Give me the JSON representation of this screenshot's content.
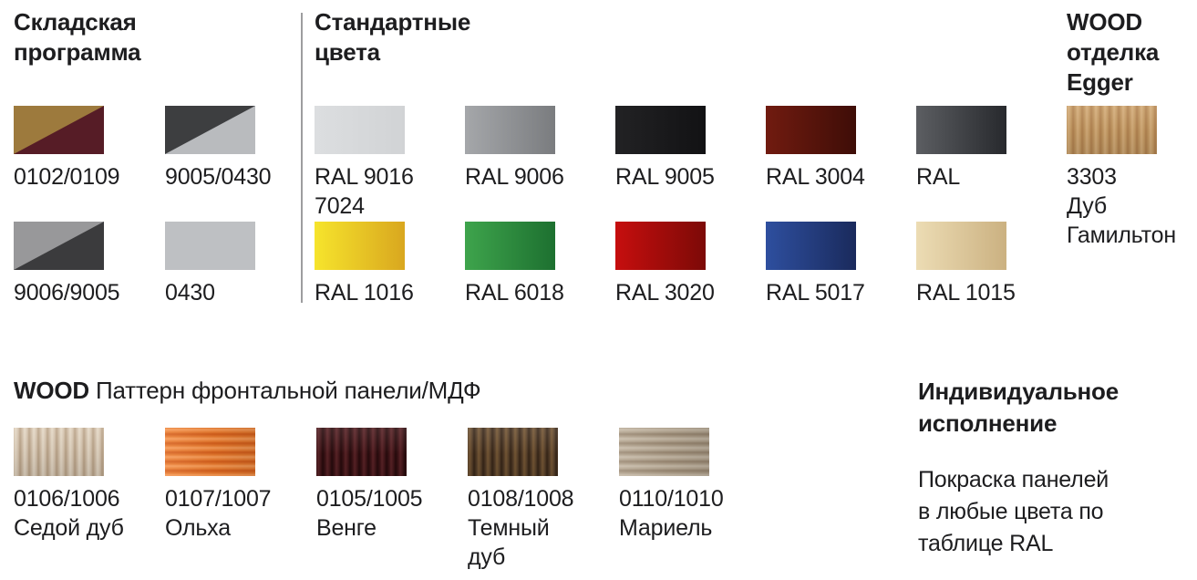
{
  "page": {
    "background_color": "#ffffff",
    "text_color": "#1d1d1f",
    "divider_color": "#9d9d9f"
  },
  "warehouse_section": {
    "title": "Складская\nпрограмма",
    "swatches": [
      {
        "label": "0102/0109",
        "fill": {
          "kind": "diagonal",
          "top_left": "#9d7a3d",
          "bottom_right": "#561c26"
        }
      },
      {
        "label": "9005/0430",
        "fill": {
          "kind": "diagonal",
          "top_left": "#3d3e40",
          "bottom_right": "#b9bbbe"
        }
      },
      {
        "label": "9006/9005",
        "fill": {
          "kind": "diagonal",
          "top_left": "#98989a",
          "bottom_right": "#3b3b3d"
        }
      },
      {
        "label": "0430",
        "fill": {
          "kind": "solid",
          "color": "#bec0c3"
        }
      }
    ]
  },
  "standard_section": {
    "title": "Стандартные\nцвета",
    "swatches": [
      {
        "label": "RAL 9016\n7024",
        "fill": {
          "kind": "gradient",
          "from": "#dcdee0",
          "to": "#d1d3d5"
        }
      },
      {
        "label": "RAL 9006",
        "fill": {
          "kind": "gradient",
          "from": "#a5a7aa",
          "to": "#7a7c7f"
        }
      },
      {
        "label": "RAL 9005",
        "fill": {
          "kind": "gradient",
          "from": "#222224",
          "to": "#121214"
        }
      },
      {
        "label": "RAL 3004",
        "fill": {
          "kind": "gradient",
          "from": "#711b10",
          "to": "#3e0d07"
        }
      },
      {
        "label": "RAL",
        "fill": {
          "kind": "gradient",
          "from": "#5c5e62",
          "to": "#27292d"
        }
      },
      {
        "label": "RAL 1016",
        "fill": {
          "kind": "gradient",
          "from": "#f6e42c",
          "to": "#d9a71f"
        }
      },
      {
        "label": "RAL 6018",
        "fill": {
          "kind": "gradient",
          "from": "#3ea44c",
          "to": "#1d7030"
        }
      },
      {
        "label": "RAL 3020",
        "fill": {
          "kind": "gradient",
          "from": "#c60e0e",
          "to": "#7c0a07"
        }
      },
      {
        "label": "RAL 5017",
        "fill": {
          "kind": "gradient",
          "from": "#2e4f9f",
          "to": "#1a2a5c"
        }
      },
      {
        "label": "RAL 1015",
        "fill": {
          "kind": "gradient",
          "from": "#ecdcb4",
          "to": "#cbb181"
        }
      }
    ]
  },
  "egger_section": {
    "title": "WOOD\nотделка\nEgger",
    "swatches": [
      {
        "label": "3303\nДуб\nГамильтон",
        "fill": {
          "kind": "wood",
          "base": "#c59a63",
          "light": "#d6ae7b",
          "dark": "#b2824f",
          "direction": "vertical"
        }
      }
    ]
  },
  "mdf_section": {
    "title_bold": "WOOD",
    "title_rest": " Паттерн фронтальной панели/МДФ",
    "swatches": [
      {
        "label": "0106/1006\nСедой дуб",
        "fill": {
          "kind": "wood",
          "base": "#d5c3ad",
          "light": "#e6dac8",
          "dark": "#b9a287",
          "direction": "vertical"
        }
      },
      {
        "label": "0107/1007\nОльха",
        "fill": {
          "kind": "wood",
          "base": "#ea7c30",
          "light": "#f89c58",
          "dark": "#d55d1a",
          "direction": "horizontal"
        }
      },
      {
        "label": "0105/1005\nВенге",
        "fill": {
          "kind": "wood",
          "base": "#401518",
          "light": "#5c2428",
          "dark": "#260a0c",
          "direction": "vertical"
        }
      },
      {
        "label": "0108/1008\nТемный\nдуб",
        "fill": {
          "kind": "wood",
          "base": "#57402a",
          "light": "#785936",
          "dark": "#362517",
          "direction": "vertical"
        }
      },
      {
        "label": "0110/1010\nМариель",
        "fill": {
          "kind": "wood",
          "base": "#b3a48f",
          "light": "#c8bcaa",
          "dark": "#998771",
          "direction": "horizontal"
        }
      }
    ]
  },
  "custom_section": {
    "title": "Индивидуальное\nисполнение",
    "body": "Покраска панелей\nв любые цвета по\nтаблице RAL"
  }
}
